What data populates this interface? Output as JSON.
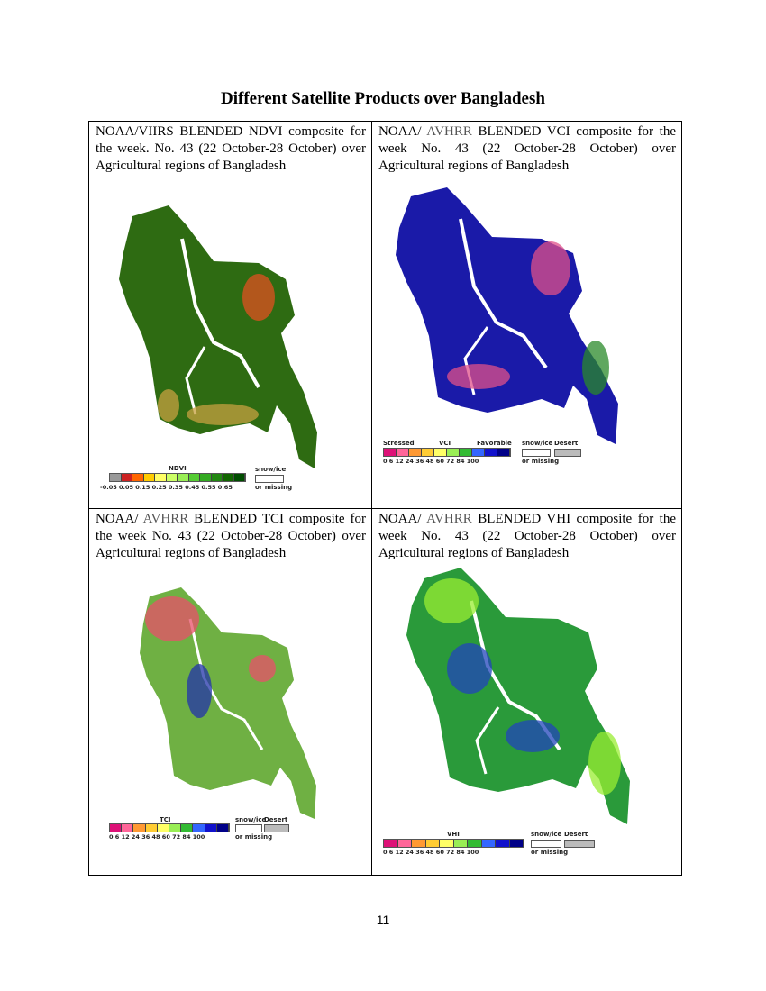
{
  "page": {
    "title": "Different Satellite Products over Bangladesh",
    "page_number": "11"
  },
  "cells": [
    {
      "caption": "NOAA/VIIRS BLENDED NDVI composite for the week. No. 43 (22 October-28 October) over Agricultural regions of Bangladesh",
      "legend": {
        "title": "NDVI",
        "ticks": "-0.05 0.05 0.15 0.25 0.35 0.45 0.55 0.65",
        "snow": "snow/ice",
        "missing": "or missing",
        "colors": [
          "#999999",
          "#cc2222",
          "#ff6600",
          "#ffcc00",
          "#ffff66",
          "#ccff66",
          "#99ee55",
          "#55cc33",
          "#33aa22",
          "#228811",
          "#116600",
          "#004d00"
        ]
      },
      "map_colors": {
        "base": "#2e6b12",
        "accent": "#c7a040",
        "hot": "#e05020"
      }
    },
    {
      "caption_parts": [
        "NOAA/ ",
        "AVHRR",
        " BLENDED VCI composite for the week No. 43 (22 October-28 October) over Agricultural regions of Bangladesh"
      ],
      "legend": {
        "stressed": "Stressed",
        "title": "VCI",
        "favorable": "Favorable",
        "snow": "snow/ice",
        "desert": "Desert",
        "ticks": "0 6 12  24  36  48  60  72  84   100",
        "missing": "or missing",
        "colors": [
          "#dd1177",
          "#ff6699",
          "#ff9933",
          "#ffcc33",
          "#ffff66",
          "#99ee55",
          "#33bb33",
          "#3366ff",
          "#1111cc",
          "#000088"
        ]
      },
      "map_colors": {
        "base": "#1a1aa8",
        "accent": "#e0508a",
        "hot": "#2a8a2a"
      }
    },
    {
      "caption_parts": [
        "NOAA/ ",
        "AVHRR",
        " BLENDED TCI composite for the week No. 43 (22 October-28 October) over Agricultural regions of Bangladesh"
      ],
      "legend": {
        "title": "TCI",
        "snow": "snow/ice",
        "desert": "Desert",
        "ticks": "0 6 12  24  36  48  60  72  84   100",
        "missing": "or missing",
        "colors": [
          "#dd1177",
          "#ff6699",
          "#ff9933",
          "#ffcc33",
          "#ffff66",
          "#99ee55",
          "#33bb33",
          "#3366ff",
          "#1111cc",
          "#000088"
        ]
      },
      "map_colors": {
        "base": "#6fb043",
        "accent": "#e8506a",
        "hot": "#2233aa"
      }
    },
    {
      "caption_parts": [
        "NOAA/ ",
        "AVHRR",
        " BLENDED VHI composite for the week No. 43 (22 October-28 October) over Agricultural regions of Bangladesh"
      ],
      "legend": {
        "title": "VHI",
        "snow": "snow/ice",
        "desert": "Desert",
        "ticks": "0 6 12  24  36  48  60  72  84   100",
        "missing": "or missing",
        "colors": [
          "#dd1177",
          "#ff6699",
          "#ff9933",
          "#ffcc33",
          "#ffff66",
          "#99ee55",
          "#33bb33",
          "#3366ff",
          "#1111cc",
          "#000088"
        ]
      },
      "map_colors": {
        "base": "#2a9a3a",
        "accent": "#99ee33",
        "hot": "#2244bb"
      }
    }
  ]
}
